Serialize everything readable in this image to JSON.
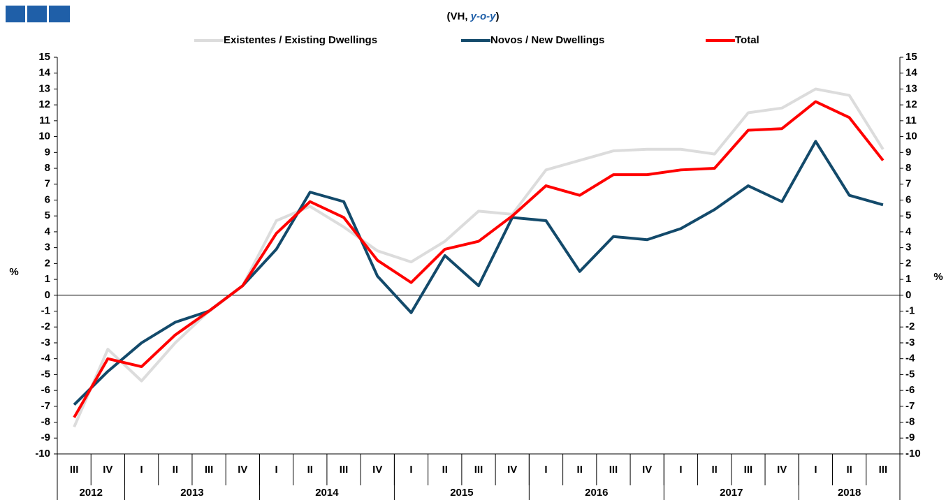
{
  "chart_data": {
    "type": "line",
    "title_parts": [
      "(VH, ",
      "y-o-y",
      ")"
    ],
    "y_label": "%",
    "y2_label": "%",
    "categories": [
      "III",
      "IV",
      "I",
      "II",
      "III",
      "IV",
      "I",
      "II",
      "III",
      "IV",
      "I",
      "II",
      "III",
      "IV",
      "I",
      "II",
      "III",
      "IV",
      "I",
      "II",
      "III",
      "IV",
      "I",
      "II",
      "III"
    ],
    "x_groups": [
      {
        "label": "2012",
        "span": 2
      },
      {
        "label": "2013",
        "span": 4
      },
      {
        "label": "2014",
        "span": 4
      },
      {
        "label": "2015",
        "span": 4
      },
      {
        "label": "2016",
        "span": 4
      },
      {
        "label": "2017",
        "span": 4
      },
      {
        "label": "2018",
        "span": 3
      }
    ],
    "series": [
      {
        "name": "Existentes / Existing Dwellings",
        "color": "#dcdcdc",
        "values": [
          -8.3,
          -3.4,
          -5.4,
          -3.0,
          -1.0,
          0.6,
          4.7,
          5.6,
          4.3,
          2.8,
          2.1,
          3.4,
          5.3,
          5.1,
          7.9,
          8.5,
          9.1,
          9.2,
          9.2,
          8.9,
          11.5,
          11.8,
          13.0,
          12.6,
          9.2
        ]
      },
      {
        "name": "Novos / New Dwellings",
        "color": "#134a6b",
        "values": [
          -6.9,
          -4.8,
          -3.0,
          -1.7,
          -1.0,
          0.6,
          2.9,
          6.5,
          5.9,
          1.2,
          -1.1,
          2.5,
          0.6,
          4.9,
          4.7,
          1.5,
          3.7,
          3.5,
          4.2,
          5.4,
          6.9,
          5.9,
          9.7,
          6.3,
          5.7
        ]
      },
      {
        "name": "Total",
        "color": "#ff0000",
        "values": [
          -7.7,
          -4.0,
          -4.5,
          -2.5,
          -1.0,
          0.6,
          3.9,
          5.9,
          4.9,
          2.2,
          0.8,
          2.9,
          3.4,
          5.0,
          6.9,
          6.3,
          7.6,
          7.6,
          7.9,
          8.0,
          10.4,
          10.5,
          12.2,
          11.2,
          8.5
        ]
      }
    ],
    "ylim": [
      -10,
      15
    ],
    "yticks": [
      -10,
      -9,
      -8,
      -7,
      -6,
      -5,
      -4,
      -3,
      -2,
      -1,
      0,
      1,
      2,
      3,
      4,
      5,
      6,
      7,
      8,
      9,
      10,
      11,
      12,
      13,
      14,
      15
    ],
    "y2lim": [
      -10,
      15
    ],
    "y2ticks": [
      -10,
      -9,
      -8,
      -7,
      -6,
      -5,
      -4,
      -3,
      -2,
      -1,
      0,
      1,
      2,
      3,
      4,
      5,
      6,
      7,
      8,
      9,
      10,
      11,
      12,
      13,
      14,
      15
    ],
    "grid": false,
    "legend": "top"
  }
}
